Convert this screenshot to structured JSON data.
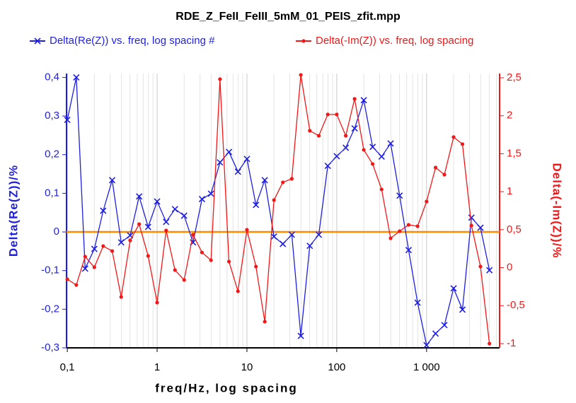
{
  "chart_data": {
    "type": "line",
    "title": "RDE_Z_FeII_FeIII_5mM_01_PEIS_zfit.mpp",
    "x_label": "freq/Hz, log spacing",
    "y_label": "Delta(Re(Z))/%",
    "y2_label": "Delta(-Im(Z))/%",
    "x_scale": "log",
    "grid": true,
    "legend": "top",
    "xlim": [
      0.098,
      6500
    ],
    "xticks": [
      {
        "value": 0.1,
        "label": "0,1"
      },
      1,
      10,
      100,
      {
        "value": 1000,
        "label": "1 000"
      }
    ],
    "ylim": [
      -0.3,
      0.41
    ],
    "yticks": [
      {
        "value": -0.3,
        "label": "-0,3"
      },
      {
        "value": -0.2,
        "label": "-0,2"
      },
      {
        "value": -0.1,
        "label": "-0,1"
      },
      0,
      {
        "value": 0.1,
        "label": "0,1"
      },
      {
        "value": 0.2,
        "label": "0,2"
      },
      {
        "value": 0.3,
        "label": "0,3"
      },
      {
        "value": 0.4,
        "label": "0,4"
      }
    ],
    "y2lim": [
      -1.056,
      2.556
    ],
    "y2ticks": [
      -1,
      {
        "value": -0.5,
        "label": "-0,5"
      },
      0,
      {
        "value": 0.5,
        "label": "0,5"
      },
      1,
      {
        "value": 1.5,
        "label": "1,5"
      },
      2,
      {
        "value": 2.5,
        "label": "2,5"
      }
    ],
    "reference_line": {
      "y": 0,
      "color": "#ff8c00"
    },
    "x": [
      0.1,
      0.126,
      0.158,
      0.2,
      0.251,
      0.316,
      0.398,
      0.501,
      0.631,
      0.794,
      1,
      1.26,
      1.58,
      2,
      2.51,
      3.16,
      3.98,
      5.01,
      6.31,
      7.94,
      10,
      12.6,
      15.8,
      20,
      25.1,
      31.6,
      39.8,
      50.1,
      63.1,
      79.4,
      100,
      126,
      158,
      200,
      251,
      316,
      398,
      501,
      631,
      794,
      1000,
      1260,
      1580,
      2000,
      2510,
      3160,
      3980,
      5010
    ],
    "series": [
      {
        "name": "Delta(Re(Z)) vs. freq, log spacing #",
        "color": "#1f1fe0",
        "marker": "x",
        "values": [
          0.29,
          0.4,
          -0.095,
          -0.044,
          0.055,
          0.134,
          -0.027,
          -0.009,
          0.092,
          0.013,
          0.079,
          0.026,
          0.059,
          0.042,
          -0.027,
          0.085,
          0.099,
          0.18,
          0.207,
          0.156,
          0.189,
          0.07,
          0.134,
          -0.012,
          -0.031,
          -0.007,
          -0.269,
          -0.036,
          -0.007,
          0.171,
          0.196,
          0.218,
          0.268,
          0.341,
          0.22,
          0.195,
          0.229,
          0.094,
          -0.047,
          -0.183,
          -0.293,
          -0.263,
          -0.241,
          -0.146,
          -0.201,
          0.037,
          0.011,
          -0.099
        ]
      },
      {
        "name": "Delta(-Im(Z)) vs. freq, log spacing",
        "color": "#f01818",
        "marker": "dot",
        "axis": "y2",
        "values": [
          -0.153,
          -0.228,
          0.145,
          0.005,
          0.284,
          0.219,
          -0.386,
          0.359,
          0.573,
          0.154,
          -0.46,
          0.49,
          -0.032,
          -0.162,
          0.434,
          0.2,
          0.098,
          2.482,
          0.08,
          -0.311,
          0.499,
          0.015,
          -0.711,
          0.89,
          1.123,
          1.17,
          2.538,
          1.803,
          1.737,
          2.017,
          2.017,
          1.737,
          2.222,
          1.551,
          1.365,
          1.03,
          0.387,
          0.48,
          0.564,
          0.545,
          0.871,
          1.318,
          1.225,
          1.719,
          1.626,
          0.555,
          0.015,
          -1.0
        ]
      }
    ]
  }
}
